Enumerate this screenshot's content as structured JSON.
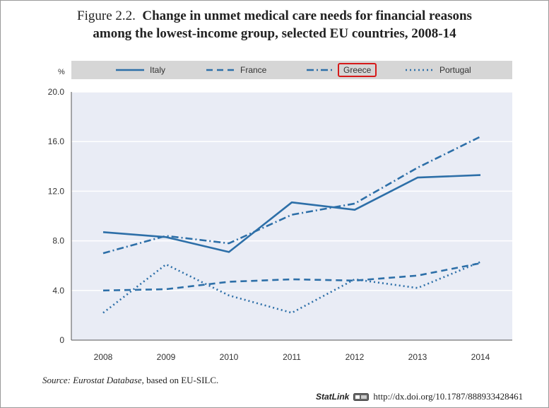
{
  "title": {
    "lead": "Figure 2.2.",
    "line1": "Change in unmet medical care needs for financial reasons",
    "line2": "among the lowest-income group, selected EU countries, 2008-14"
  },
  "unit_label": "%",
  "source": {
    "prefix": "Source:",
    "database": "Eurostat Database",
    "suffix": ", based on EU-SILC."
  },
  "statlink": {
    "brand": "StatLink",
    "url": "http://dx.doi.org/10.1787/888933428461"
  },
  "highlighted_legend_entry": "Greece",
  "colors": {
    "line": "#2d6fa8",
    "plot_bg": "#e9ecf5",
    "legend_bg": "#d6d6d6",
    "highlight": "#d61a1a"
  },
  "chart_data": {
    "type": "line",
    "x": [
      "2008",
      "2009",
      "2010",
      "2011",
      "2012",
      "2013",
      "2014"
    ],
    "ylim": [
      0,
      20
    ],
    "yticks": [
      "0",
      "4.0",
      "8.0",
      "12.0",
      "16.0",
      "20.0"
    ],
    "ytick_values": [
      0,
      4,
      8,
      12,
      16,
      20
    ],
    "ylabel": "%",
    "grid": "horizontal",
    "legend_position": "top",
    "series": [
      {
        "name": "Italy",
        "dash": "solid",
        "values": [
          8.7,
          8.3,
          7.1,
          11.1,
          10.5,
          13.1,
          13.3
        ]
      },
      {
        "name": "France",
        "dash": "dashed",
        "values": [
          4.0,
          4.1,
          4.7,
          4.9,
          4.8,
          5.2,
          6.2
        ]
      },
      {
        "name": "Greece",
        "dash": "dash-dot",
        "values": [
          7.0,
          8.4,
          7.8,
          10.1,
          11.0,
          13.9,
          16.4
        ]
      },
      {
        "name": "Portugal",
        "dash": "dotted",
        "values": [
          2.2,
          6.1,
          3.6,
          2.2,
          4.9,
          4.2,
          6.3
        ]
      }
    ]
  }
}
